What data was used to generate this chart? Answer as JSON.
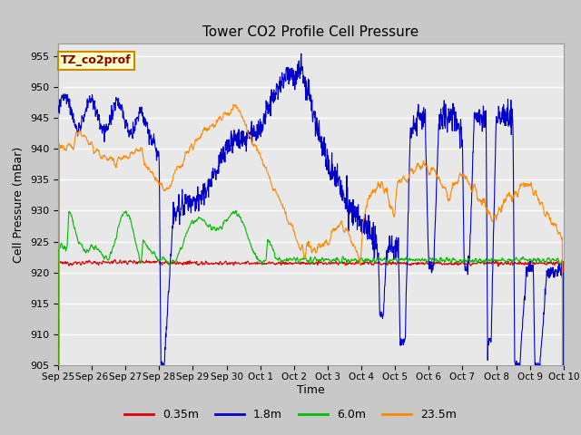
{
  "title": "Tower CO2 Profile Cell Pressure",
  "xlabel": "Time",
  "ylabel": "Cell Pressure (mBar)",
  "ylim": [
    905,
    957
  ],
  "yticks": [
    905,
    910,
    915,
    920,
    925,
    930,
    935,
    940,
    945,
    950,
    955
  ],
  "plot_bg_color": "#e8e8e8",
  "fig_bg_color": "#c8c8c8",
  "grid_color": "#ffffff",
  "legend_label": "TZ_co2prof",
  "legend_box_color": "#ffffcc",
  "legend_box_edge": "#cc8800",
  "series_colors": {
    "0.35m": "#dd0000",
    "1.8m": "#0000cc",
    "6.0m": "#00bb00",
    "23.5m": "#ff8800"
  },
  "series_lw": 0.8,
  "xtick_labels": [
    "Sep 25",
    "Sep 26",
    "Sep 27",
    "Sep 28",
    "Sep 29",
    "Sep 30",
    "Oct 1",
    "Oct 2",
    "Oct 3",
    "Oct 4",
    "Oct 5",
    "Oct 6",
    "Oct 7",
    "Oct 8",
    "Oct 9",
    "Oct 10"
  ],
  "xtick_positions": [
    0,
    1,
    2,
    3,
    4,
    5,
    6,
    7,
    8,
    9,
    10,
    11,
    12,
    13,
    14,
    15
  ]
}
